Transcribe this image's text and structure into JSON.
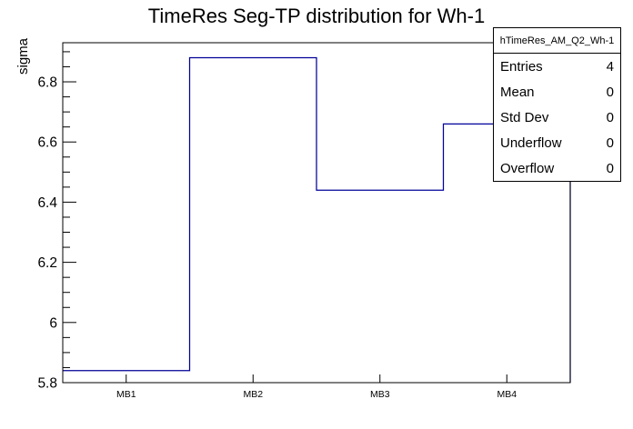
{
  "canvas_title": "TimeRes Seg-TP distribution for Wh-1",
  "chart_data": {
    "type": "bar",
    "style": "root-step-histogram-outline",
    "title": "TimeRes Seg-TP distribution for Wh-1",
    "categories": [
      "MB1",
      "MB2",
      "MB3",
      "MB4"
    ],
    "values": [
      5.84,
      6.88,
      6.44,
      6.66
    ],
    "xlabel": "",
    "ylabel": "sigma",
    "ylim": [
      5.8,
      6.93
    ],
    "yticks": [
      5.8,
      6.0,
      6.2,
      6.4,
      6.6,
      6.8
    ],
    "ytick_labels": [
      "5.8",
      "6",
      "6.2",
      "6.4",
      "6.6",
      "6.8"
    ],
    "minor_tick_step": 0.05,
    "grid": false,
    "legend_position": "none",
    "line_color": "#000099",
    "frame_color": "#000000",
    "background_color": "#ffffff"
  },
  "stats_box": {
    "title": "hTimeRes_AM_Q2_Wh-1",
    "rows": [
      {
        "label": "Entries",
        "value": "4"
      },
      {
        "label": "Mean",
        "value": "0"
      },
      {
        "label": "Std Dev",
        "value": "0"
      },
      {
        "label": "Underflow",
        "value": "0"
      },
      {
        "label": "Overflow",
        "value": "0"
      }
    ]
  }
}
